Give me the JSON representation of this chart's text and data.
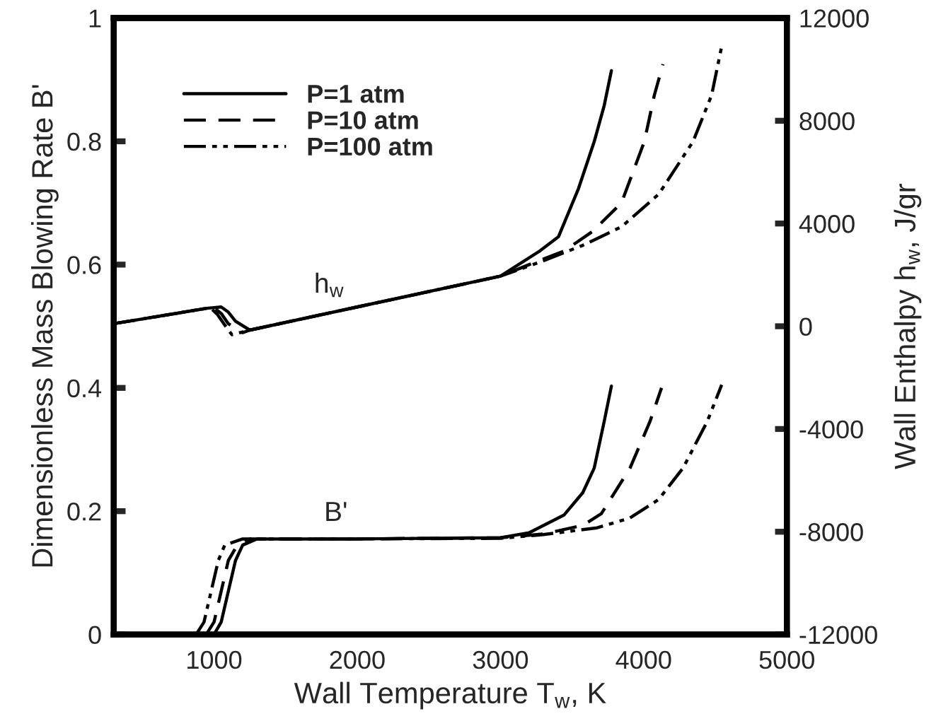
{
  "chart_data": {
    "type": "line",
    "xlabel": "Wall Temperature T$_{w}$, K",
    "ylabel": "Dimensionless Mass Blowing Rate B'",
    "y2label": "Wall Enthalpy h$_{w}$, J/gr",
    "xlim": [
      300,
      5000
    ],
    "xticks": [
      1000,
      2000,
      3000,
      4000,
      5000
    ],
    "ylim": [
      0,
      1
    ],
    "yticks": [
      0,
      0.2,
      0.4,
      0.6,
      0.8,
      1
    ],
    "y2lim": [
      -12000,
      12000
    ],
    "y2ticks": [
      -12000,
      -8000,
      -4000,
      0,
      4000,
      8000,
      12000
    ],
    "legend": "top left",
    "grid": false,
    "annotations": [
      "h$_{w}$",
      "B'"
    ],
    "series": [
      {
        "name": "P=1 atm",
        "color": "#000000",
        "line_style": "solid",
        "x": [
          1000,
          1050,
          1100,
          1150,
          1200,
          1300,
          2000,
          3000,
          3200,
          3445,
          3575,
          3655,
          3725,
          3775
        ],
        "values": [
          0,
          0.02,
          0.07,
          0.12,
          0.145,
          0.155,
          0.155,
          0.157,
          0.165,
          0.194,
          0.23,
          0.27,
          0.346,
          0.403
        ]
      },
      {
        "name": "P=10 atm",
        "color": "#000000",
        "line_style": "dashed",
        "x": [
          945,
          1000,
          1050,
          1100,
          1150,
          1250,
          2000,
          3000,
          3300,
          3575,
          3705,
          3905,
          4045,
          4125
        ],
        "values": [
          0,
          0.02,
          0.07,
          0.12,
          0.14,
          0.155,
          0.155,
          0.157,
          0.163,
          0.177,
          0.196,
          0.27,
          0.346,
          0.4
        ]
      },
      {
        "name": "P=100 atm",
        "color": "#000000",
        "line_style": "dashdotdot",
        "x": [
          875,
          930,
          980,
          1030,
          1075,
          1200,
          2000,
          3000,
          3300,
          3675,
          3905,
          4105,
          4275,
          4445,
          4545
        ],
        "values": [
          0,
          0.02,
          0.07,
          0.12,
          0.145,
          0.155,
          0.155,
          0.156,
          0.162,
          0.173,
          0.189,
          0.219,
          0.27,
          0.346,
          0.405
        ]
      },
      {
        "axis": "y2",
        "color": "#000000",
        "line_style": "solid",
        "x": [
          300,
          950,
          1050,
          1100,
          1150,
          1250,
          2000,
          3000,
          3275,
          3405,
          3545,
          3655,
          3725,
          3775
        ],
        "values": [
          100,
          700,
          750,
          550,
          200,
          -150,
          750,
          1950,
          2930,
          3480,
          5360,
          7190,
          8600,
          9950
        ]
      },
      {
        "axis": "y2",
        "color": "#000000",
        "line_style": "dashed",
        "x": [
          300,
          950,
          1000,
          1050,
          1100,
          1200,
          1250,
          2000,
          3000,
          3200,
          3445,
          3645,
          3845,
          4005,
          4075,
          4135
        ],
        "values": [
          100,
          700,
          720,
          500,
          100,
          -250,
          -150,
          750,
          1950,
          2400,
          2930,
          3700,
          4800,
          7190,
          9000,
          10200
        ]
      },
      {
        "axis": "y2",
        "color": "#000000",
        "line_style": "dashdotdot",
        "x": [
          300,
          950,
          975,
          1025,
          1075,
          1125,
          1250,
          2000,
          3000,
          3300,
          3575,
          3845,
          4105,
          4345,
          4475,
          4545
        ],
        "values": [
          100,
          700,
          720,
          450,
          50,
          -330,
          -150,
          750,
          1950,
          2550,
          3150,
          3870,
          5140,
          7190,
          9000,
          10900
        ]
      }
    ]
  }
}
